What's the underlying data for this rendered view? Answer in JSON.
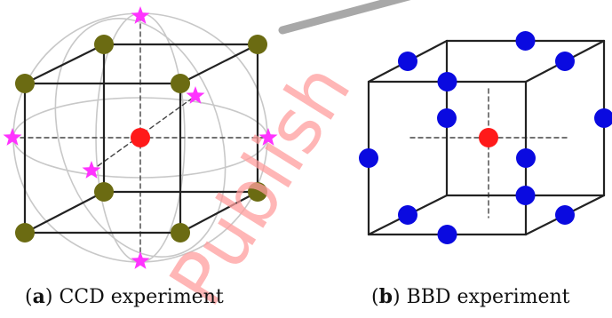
{
  "colors": {
    "cube_edge": "#222222",
    "axis_dashed": "#444444",
    "sphere_circle": "#c8c8c8",
    "center_point": "#ff1a1a",
    "factorial_point": "#6b6b12",
    "axial_point": "#ff33ff",
    "bbd_point": "#0a0ae0",
    "watermark_red": "#ff9d9d",
    "watermark_gray": "#a8a8a8"
  },
  "panels": [
    {
      "id": "a",
      "letter": "a",
      "caption_text": "CCD experiment",
      "design": "Central Composite Design",
      "point_counts": {
        "center": 1,
        "factorial": 8,
        "axial": 6
      }
    },
    {
      "id": "b",
      "letter": "b",
      "caption_text": "BBD experiment",
      "design": "Box-Behnken Design",
      "point_counts": {
        "center": 1,
        "edge_midpoints": 12
      }
    }
  ],
  "watermark": {
    "text": "Publish",
    "icon": "watermark-text"
  }
}
